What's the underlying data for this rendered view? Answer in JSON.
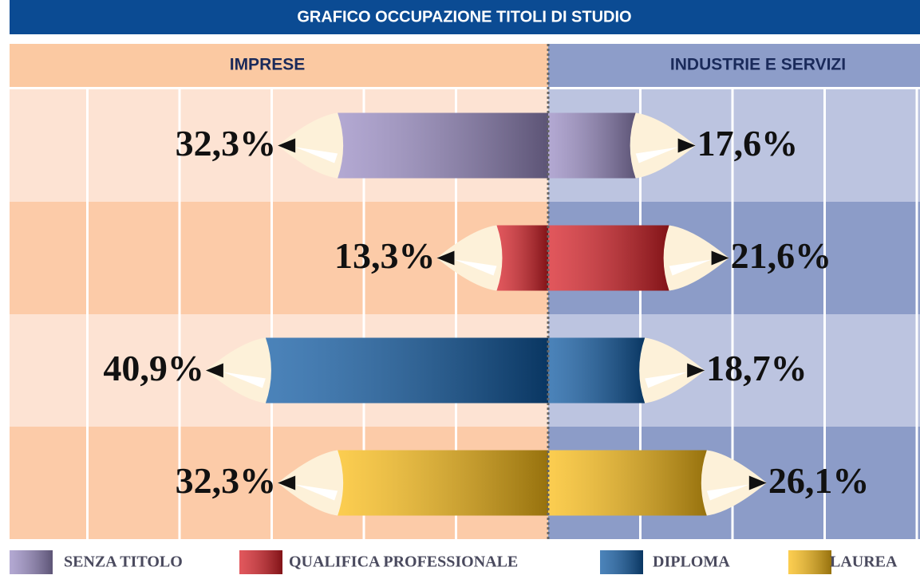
{
  "chart_data": {
    "type": "bar",
    "title": "GRAFICO OCCUPAZIONE TITOLI DI STUDIO",
    "categories": [
      "SENZA TITOLO",
      "QUALIFICA PROFESSIONALE",
      "DIPLOMA",
      "LAUREA"
    ],
    "colors": [
      "#9a8cc4",
      "#d81f26",
      "#0f5aa3",
      "#fbbd16"
    ],
    "series": [
      {
        "name": "IMPRESE",
        "values": [
          32.3,
          13.3,
          40.9,
          32.3
        ],
        "value_labels": [
          "32,3%",
          "13,3%",
          "40,9%",
          "32,3%"
        ]
      },
      {
        "name": "INDUSTRIE E SERVIZI",
        "values": [
          17.6,
          21.6,
          18.7,
          26.1
        ],
        "value_labels": [
          "17,6%",
          "21,6%",
          "18,7%",
          "26,1%"
        ]
      }
    ],
    "xlim": [
      0,
      55
    ],
    "grid": true
  }
}
